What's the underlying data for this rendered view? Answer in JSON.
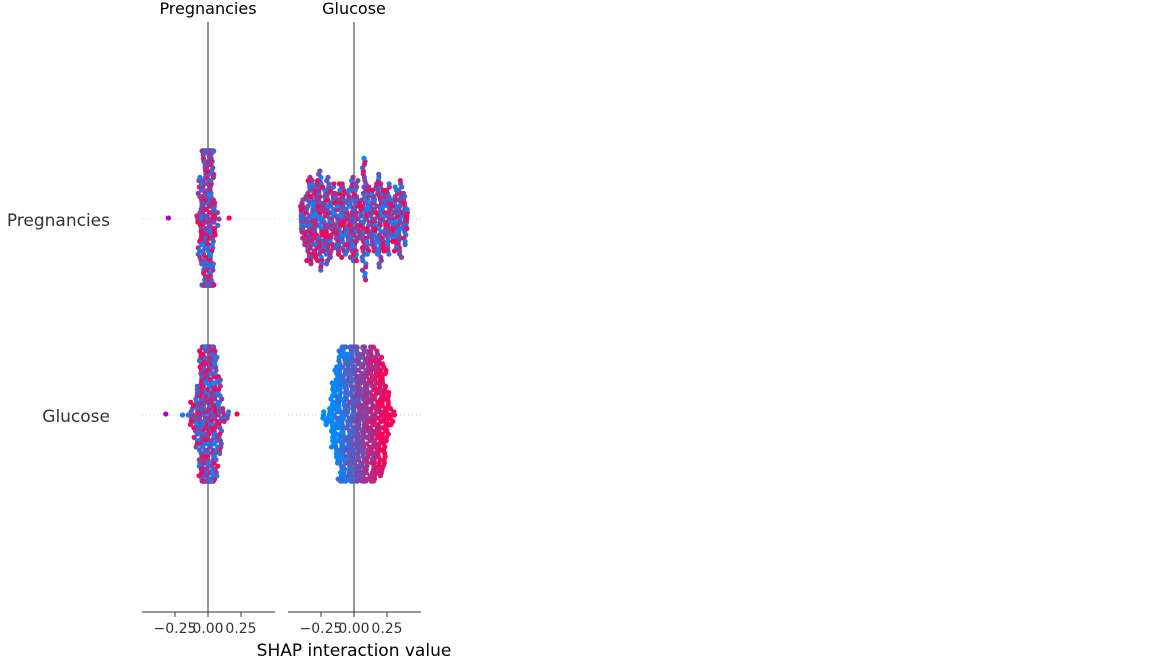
{
  "chart_data": {
    "type": "scatter",
    "subtype": "shap-interaction-summary-beeswarm",
    "column_titles": [
      "Pregnancies",
      "Glucose"
    ],
    "row_labels": [
      "Pregnancies",
      "Glucose"
    ],
    "x_axis_label": "SHAP interaction value",
    "xlim": [
      -0.5,
      0.5
    ],
    "x_ticks": [
      -0.25,
      0.0,
      0.25
    ],
    "x_tick_labels": [
      "−0.25",
      "0.00",
      "0.25"
    ],
    "grid": false,
    "colors": {
      "low": "#008bfb",
      "high": "#ff0052",
      "zero_line": "#999999",
      "row_guide": "#cccccc",
      "axis": "#333333"
    },
    "panels": [
      {
        "row": "Pregnancies",
        "column": "Pregnancies",
        "points": 360,
        "center": 0.0,
        "spread": 0.03,
        "outliers": [
          -0.3,
          0.16
        ],
        "color_trend": "mixed"
      },
      {
        "row": "Pregnancies",
        "column": "Glucose",
        "points": 620,
        "center": 0.0,
        "spread": 0.45,
        "outliers": [],
        "color_trend": "mixed"
      },
      {
        "row": "Glucose",
        "column": "Pregnancies",
        "points": 360,
        "center": 0.0,
        "spread": 0.05,
        "outliers": [
          -0.32,
          0.22
        ],
        "color_trend": "mixed"
      },
      {
        "row": "Glucose",
        "column": "Glucose",
        "points": 620,
        "center": 0.0,
        "spread": 0.25,
        "outliers": [],
        "color_trend": "low-left-high-right"
      }
    ]
  }
}
